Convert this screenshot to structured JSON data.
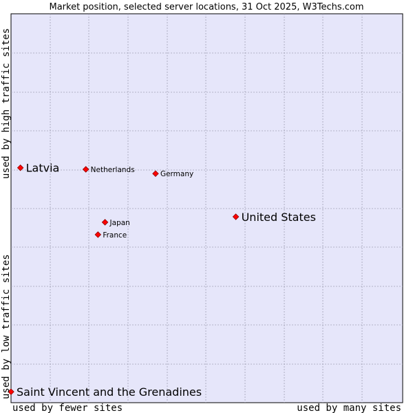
{
  "chart_data": {
    "type": "scatter",
    "title": "Market position, selected server locations, 31 Oct 2025, W3Techs.com",
    "xlabel_left": "used by fewer sites",
    "xlabel_right": "used by many sites",
    "ylabel_top": "used by high traffic sites",
    "ylabel_bottom": "used by low traffic sites",
    "xlim": [
      0,
      100
    ],
    "ylim": [
      0,
      100
    ],
    "grid": true,
    "points": [
      {
        "name": "Latvia",
        "x": 2.4,
        "y": 60.4,
        "size": "large"
      },
      {
        "name": "Netherlands",
        "x": 19.1,
        "y": 60.0,
        "size": "small"
      },
      {
        "name": "Germany",
        "x": 36.9,
        "y": 58.9,
        "size": "small"
      },
      {
        "name": "United States",
        "x": 57.4,
        "y": 47.8,
        "size": "large"
      },
      {
        "name": "Japan",
        "x": 24.0,
        "y": 46.4,
        "size": "small"
      },
      {
        "name": "France",
        "x": 22.2,
        "y": 43.2,
        "size": "small"
      }
    ],
    "points_extra": [
      {
        "name": "Saint Vincent and the Grenadines",
        "x": 0.0,
        "y": 2.8,
        "size": "large"
      }
    ]
  },
  "colors": {
    "plot_bg": "#e6e6fa",
    "grid": "#a0a0b4",
    "marker": "#ff0000",
    "marker_edge": "#8b0000"
  }
}
